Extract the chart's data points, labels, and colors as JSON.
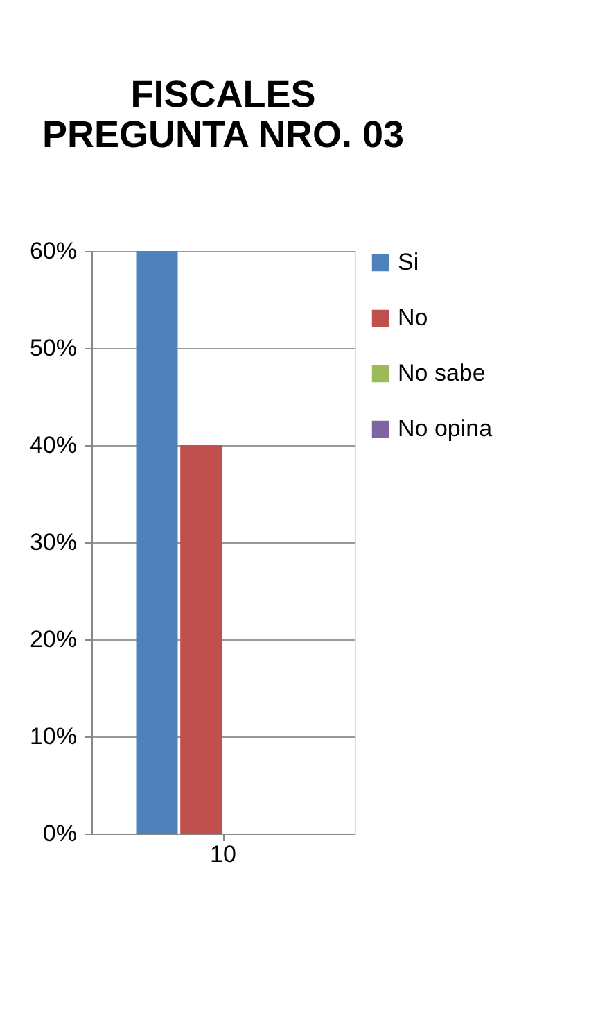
{
  "chart_data": {
    "type": "bar",
    "title": [
      "FISCALES",
      "PREGUNTA NRO. 03"
    ],
    "categories": [
      "10"
    ],
    "series": [
      {
        "name": "Si",
        "color": "#4f81bd",
        "values": [
          60
        ]
      },
      {
        "name": "No",
        "color": "#c0504d",
        "values": [
          40
        ]
      },
      {
        "name": "No sabe",
        "color": "#9bbb59",
        "values": [
          0
        ]
      },
      {
        "name": "No opina",
        "color": "#8064a2",
        "values": [
          0
        ]
      }
    ],
    "ylim": [
      0,
      60
    ],
    "yticks": [
      {
        "value": 0,
        "label": "0%"
      },
      {
        "value": 10,
        "label": "10%"
      },
      {
        "value": 20,
        "label": "20%"
      },
      {
        "value": 30,
        "label": "30%"
      },
      {
        "value": 40,
        "label": "40%"
      },
      {
        "value": 50,
        "label": "50%"
      },
      {
        "value": 60,
        "label": "60%"
      }
    ],
    "grid": "y",
    "legend": "right"
  }
}
